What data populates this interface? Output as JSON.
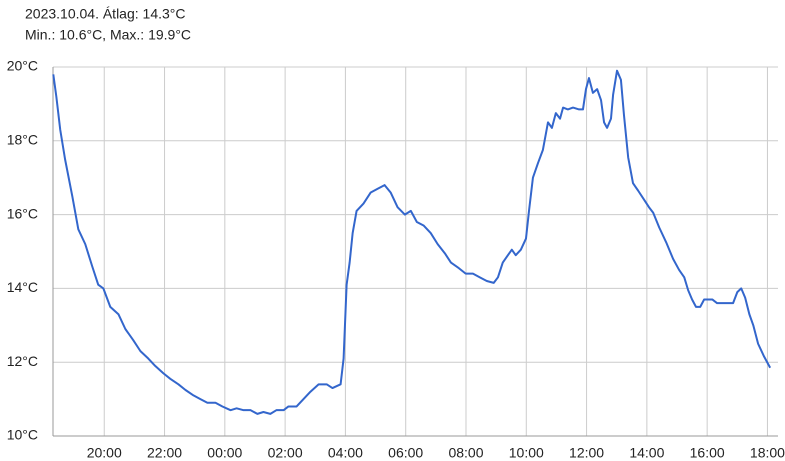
{
  "chart_data": {
    "type": "line",
    "title": "2023.10.04. Átlag: 14.3°C",
    "subtitle": "Min.: 10.6°C, Max.: 19.9°C",
    "color": "#3366cc",
    "grid": true,
    "x": [
      18.31,
      18.41,
      18.54,
      18.7,
      18.94,
      19.14,
      19.37,
      19.6,
      19.8,
      19.97,
      20.2,
      20.47,
      20.7,
      20.96,
      21.2,
      21.46,
      21.69,
      21.96,
      22.19,
      22.46,
      22.69,
      22.96,
      23.19,
      23.42,
      23.69,
      23.92,
      24.19,
      24.39,
      24.62,
      24.85,
      25.08,
      25.28,
      25.51,
      25.71,
      25.95,
      26.11,
      26.38,
      26.61,
      26.84,
      27.11,
      27.38,
      27.57,
      27.84,
      27.94,
      28.04,
      28.14,
      28.24,
      28.37,
      28.6,
      28.84,
      29.07,
      29.3,
      29.5,
      29.73,
      29.97,
      30.17,
      30.37,
      30.6,
      30.83,
      31.06,
      31.3,
      31.5,
      31.76,
      31.99,
      32.23,
      32.46,
      32.69,
      32.92,
      33.06,
      33.22,
      33.39,
      33.52,
      33.65,
      33.82,
      33.99,
      34.09,
      34.22,
      34.39,
      34.55,
      34.72,
      34.85,
      34.98,
      35.12,
      35.22,
      35.38,
      35.55,
      35.75,
      35.88,
      35.98,
      36.08,
      36.21,
      36.35,
      36.48,
      36.58,
      36.68,
      36.81,
      36.88,
      37.01,
      37.14,
      37.24,
      37.38,
      37.54,
      37.71,
      37.91,
      38.07,
      38.21,
      38.41,
      38.64,
      38.87,
      39.07,
      39.24,
      39.37,
      39.5,
      39.63,
      39.77,
      39.9,
      40.17,
      40.33,
      40.66,
      40.86,
      41.0,
      41.13,
      41.26,
      41.4,
      41.53,
      41.69,
      41.89,
      42.09
    ],
    "values": [
      19.8,
      19.2,
      18.3,
      17.5,
      16.5,
      15.6,
      15.2,
      14.6,
      14.1,
      14.0,
      13.5,
      13.3,
      12.9,
      12.6,
      12.3,
      12.1,
      11.9,
      11.7,
      11.55,
      11.4,
      11.25,
      11.1,
      11.0,
      10.9,
      10.9,
      10.8,
      10.7,
      10.75,
      10.7,
      10.7,
      10.6,
      10.65,
      10.6,
      10.7,
      10.7,
      10.8,
      10.8,
      11.0,
      11.2,
      11.4,
      11.4,
      11.3,
      11.4,
      12.1,
      14.1,
      14.7,
      15.5,
      16.1,
      16.3,
      16.6,
      16.7,
      16.8,
      16.6,
      16.2,
      16.0,
      16.1,
      15.8,
      15.7,
      15.5,
      15.2,
      14.95,
      14.7,
      14.55,
      14.4,
      14.4,
      14.3,
      14.2,
      14.15,
      14.3,
      14.7,
      14.9,
      15.05,
      14.9,
      15.05,
      15.35,
      16.1,
      17.0,
      17.4,
      17.75,
      18.5,
      18.35,
      18.75,
      18.6,
      18.9,
      18.85,
      18.9,
      18.85,
      18.85,
      19.4,
      19.7,
      19.3,
      19.4,
      19.1,
      18.5,
      18.35,
      18.6,
      19.25,
      19.9,
      19.65,
      18.7,
      17.55,
      16.85,
      16.65,
      16.4,
      16.2,
      16.05,
      15.65,
      15.25,
      14.8,
      14.5,
      14.3,
      13.95,
      13.7,
      13.5,
      13.5,
      13.7,
      13.7,
      13.6,
      13.6,
      13.6,
      13.9,
      14.0,
      13.75,
      13.3,
      13.0,
      12.5,
      12.15,
      11.85
    ],
    "xlim": [
      18.3,
      42.35
    ],
    "ylim": [
      10,
      20
    ],
    "xticks": [
      {
        "value": 20,
        "label": "20:00"
      },
      {
        "value": 22,
        "label": "22:00"
      },
      {
        "value": 24,
        "label": "00:00"
      },
      {
        "value": 26,
        "label": "02:00"
      },
      {
        "value": 28,
        "label": "04:00"
      },
      {
        "value": 30,
        "label": "06:00"
      },
      {
        "value": 32,
        "label": "08:00"
      },
      {
        "value": 34,
        "label": "10:00"
      },
      {
        "value": 36,
        "label": "12:00"
      },
      {
        "value": 38,
        "label": "14:00"
      },
      {
        "value": 40,
        "label": "16:00"
      },
      {
        "value": 42,
        "label": "18:00"
      }
    ],
    "yticks": [
      {
        "value": 10,
        "label": "10°C"
      },
      {
        "value": 12,
        "label": "12°C"
      },
      {
        "value": 14,
        "label": "14°C"
      },
      {
        "value": 16,
        "label": "16°C"
      },
      {
        "value": 18,
        "label": "18°C"
      },
      {
        "value": 20,
        "label": "20°C"
      }
    ]
  }
}
